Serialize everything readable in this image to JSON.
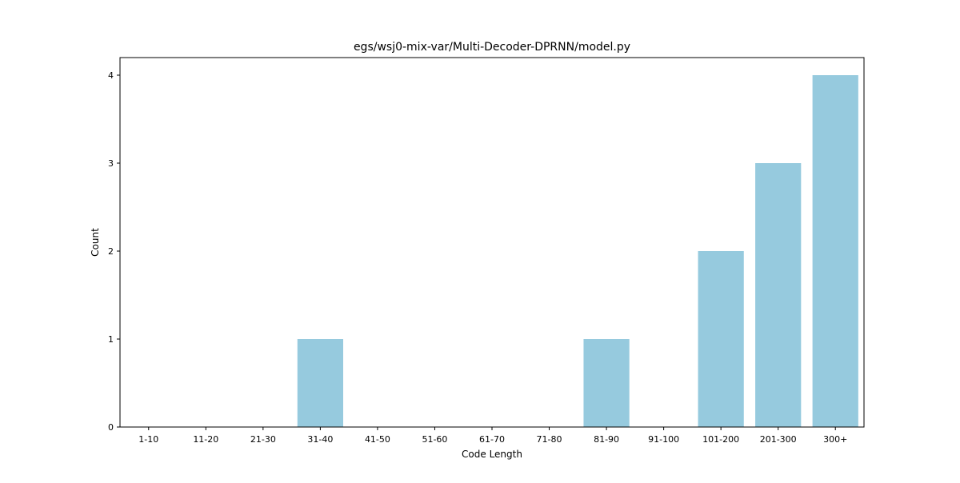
{
  "chart_data": {
    "type": "bar",
    "title": "egs/wsj0-mix-var/Multi-Decoder-DPRNN/model.py",
    "xlabel": "Code Length",
    "ylabel": "Count",
    "categories": [
      "1-10",
      "11-20",
      "21-30",
      "31-40",
      "41-50",
      "51-60",
      "61-70",
      "71-80",
      "81-90",
      "91-100",
      "101-200",
      "201-300",
      "300+"
    ],
    "values": [
      0,
      0,
      0,
      1,
      0,
      0,
      0,
      0,
      1,
      0,
      2,
      3,
      4
    ],
    "ylim": [
      0,
      4.2
    ],
    "yticks": [
      "0",
      "1",
      "2",
      "3",
      "4"
    ],
    "grid": false,
    "colors": {
      "bar": "#96cade",
      "axis": "#000000"
    }
  }
}
